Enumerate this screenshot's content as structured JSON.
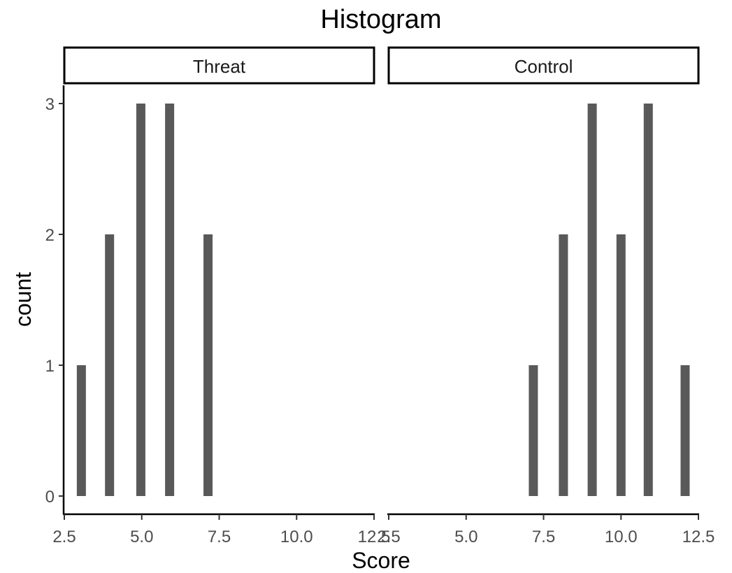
{
  "chart_data": {
    "type": "bar",
    "title": "Histogram",
    "xlabel": "Score",
    "ylabel": "count",
    "xlim": [
      2.5,
      12.5
    ],
    "ylim": [
      0,
      3
    ],
    "x_ticks": [
      "2.5",
      "5.0",
      "7.5",
      "10.0",
      "12.5"
    ],
    "y_ticks": [
      "0",
      "1",
      "2",
      "3"
    ],
    "grid": false,
    "panels": [
      {
        "name": "Threat",
        "x": [
          3.05,
          3.96,
          4.97,
          5.9,
          7.14
        ],
        "values": [
          1,
          2,
          3,
          3,
          2
        ]
      },
      {
        "name": "Control",
        "x": [
          7.17,
          8.14,
          9.07,
          10.0,
          10.88,
          12.07
        ],
        "values": [
          1,
          2,
          3,
          2,
          3,
          1
        ]
      }
    ],
    "bar_color": "#595959"
  }
}
